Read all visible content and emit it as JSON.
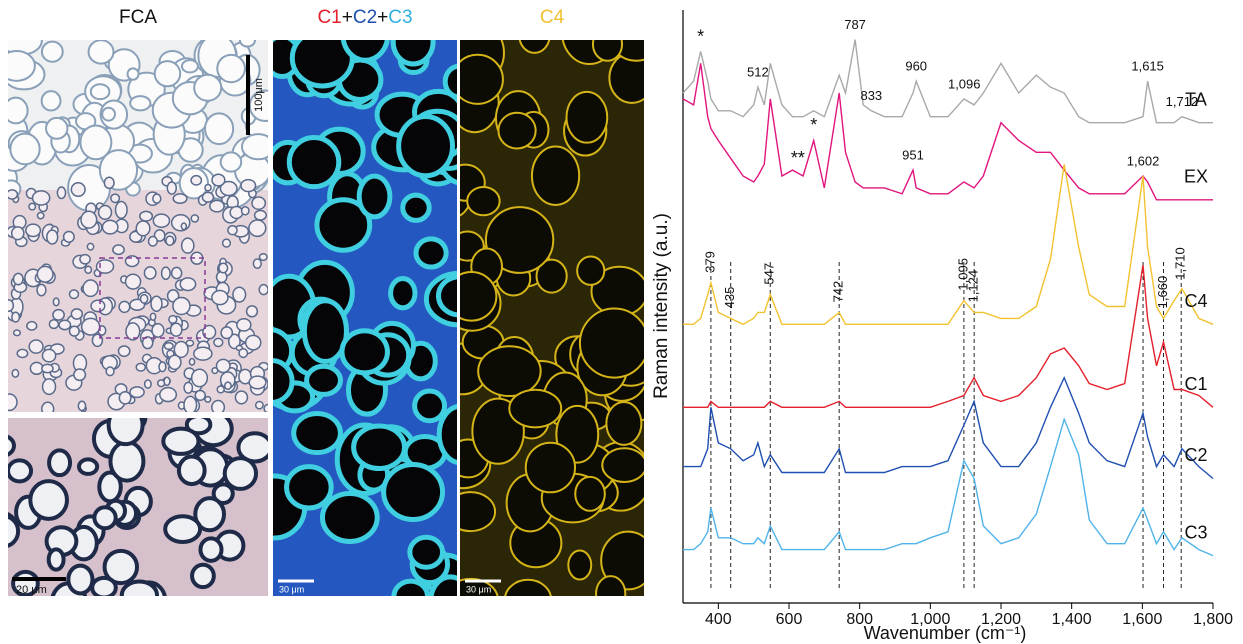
{
  "chart_data": {
    "type": "line",
    "xlabel": "Wavenumber (cm⁻¹)",
    "ylabel": "Raman intensity (a.u.)",
    "xlim": [
      300,
      1800
    ],
    "ylim": [
      0,
      100
    ],
    "xticks": [
      400,
      600,
      800,
      {
        "value": 1000,
        "label": "1,000"
      },
      {
        "value": 1200,
        "label": "1,200"
      },
      {
        "value": 1400,
        "label": "1,400"
      },
      {
        "value": 1600,
        "label": "1,600"
      },
      {
        "value": 1800,
        "label": "1,800"
      }
    ],
    "x": [
      300,
      330,
      350,
      370,
      379,
      400,
      435,
      470,
      500,
      512,
      530,
      547,
      580,
      610,
      640,
      670,
      700,
      742,
      760,
      787,
      810,
      833,
      870,
      920,
      951,
      960,
      1000,
      1050,
      1095,
      1124,
      1150,
      1200,
      1250,
      1300,
      1340,
      1379,
      1420,
      1450,
      1500,
      1550,
      1602,
      1615,
      1640,
      1660,
      1690,
      1712,
      1760,
      1800
    ],
    "reference_lines": [
      379,
      435,
      547,
      742,
      1095,
      1124,
      1602,
      1660,
      1710
    ],
    "series": [
      {
        "name": "TA",
        "color": "#a9a9a9",
        "values": [
          86,
          88,
          93,
          88,
          85,
          83,
          83,
          82,
          84,
          87,
          84,
          91,
          84,
          82,
          82,
          83,
          82,
          89,
          86,
          95,
          84,
          83,
          82,
          82,
          86,
          88,
          82,
          82,
          85,
          84,
          86,
          91,
          86,
          89,
          87,
          86,
          82,
          81,
          81,
          81,
          82,
          88,
          81,
          81,
          81,
          82,
          81,
          81
        ],
        "peak_labels": [
          {
            "x": 350,
            "label": "*"
          },
          {
            "x": 512,
            "label": "512"
          },
          {
            "x": 787,
            "label": "787"
          },
          {
            "x": 833,
            "label": "833"
          },
          {
            "x": 960,
            "label": "960"
          },
          {
            "x": 1096,
            "label": "1,096"
          },
          {
            "x": 1615,
            "label": "1,615"
          },
          {
            "x": 1712,
            "label": "1,712"
          }
        ]
      },
      {
        "name": "EX",
        "color": "#e0157d",
        "values": [
          85,
          84,
          91,
          82,
          80,
          78,
          75,
          72,
          71,
          72,
          74,
          85,
          72,
          73,
          72,
          78,
          70,
          86,
          76,
          71,
          70,
          70,
          70,
          69,
          73,
          70,
          69,
          69,
          71,
          70,
          72,
          81,
          78,
          76,
          76,
          73,
          70,
          69,
          69,
          69,
          72,
          71,
          68,
          68,
          68,
          68,
          68,
          68
        ],
        "peak_labels": [
          {
            "x": 625,
            "label": "**"
          },
          {
            "x": 670,
            "label": "*"
          },
          {
            "x": 951,
            "label": "951"
          },
          {
            "x": 1602,
            "label": "1,602"
          }
        ]
      },
      {
        "name": "C4",
        "color": "#f2c230",
        "values": [
          47,
          47,
          48,
          52,
          54,
          49,
          48,
          47,
          48,
          49,
          49,
          52,
          47,
          47,
          47,
          47,
          47,
          49,
          47,
          47,
          47,
          47,
          47,
          47,
          47,
          47,
          47,
          47,
          51,
          49,
          49,
          48,
          48,
          50,
          58,
          74,
          60,
          52,
          50,
          50,
          72,
          60,
          50,
          48,
          51,
          53,
          48,
          47
        ],
        "label_rotation": -90,
        "peak_labels": [
          {
            "x": 379,
            "label": "379"
          },
          {
            "x": 435,
            "label": "435"
          },
          {
            "x": 547,
            "label": "547"
          },
          {
            "x": 742,
            "label": "742"
          },
          {
            "x": 1095,
            "label": "1,095"
          },
          {
            "x": 1124,
            "label": "1,124"
          },
          {
            "x": 1660,
            "label": "1,660"
          },
          {
            "x": 1710,
            "label": "1,710"
          }
        ]
      },
      {
        "name": "C1",
        "color": "#e3202b",
        "values": [
          33,
          33,
          33,
          33,
          34,
          33,
          33,
          33,
          33,
          33,
          33,
          34,
          33,
          33,
          33,
          33,
          33,
          34,
          33,
          33,
          33,
          33,
          33,
          33,
          33,
          33,
          33,
          34,
          35,
          38,
          35,
          34,
          35,
          38,
          42,
          43,
          40,
          37,
          36,
          37,
          57,
          48,
          40,
          44,
          36,
          36,
          35,
          33
        ]
      },
      {
        "name": "C2",
        "color": "#1f4fb0",
        "values": [
          23,
          23,
          23,
          26,
          33,
          27,
          26,
          24,
          25,
          27,
          23,
          25,
          22,
          22,
          22,
          22,
          22,
          26,
          22,
          22,
          22,
          22,
          22,
          23,
          23,
          23,
          23,
          24,
          30,
          34,
          27,
          23,
          23,
          27,
          33,
          38,
          32,
          27,
          24,
          23,
          32,
          28,
          23,
          25,
          23,
          26,
          23,
          21
        ]
      },
      {
        "name": "C3",
        "color": "#4fb3ea",
        "values": [
          9,
          9,
          10,
          12,
          16,
          11,
          11,
          10,
          10,
          11,
          10,
          13,
          9,
          9,
          9,
          9,
          9,
          12,
          9,
          9,
          9,
          9,
          9,
          10,
          10,
          10,
          11,
          12,
          24,
          21,
          13,
          10,
          11,
          15,
          23,
          31,
          25,
          14,
          10,
          10,
          16,
          14,
          10,
          12,
          9,
          11,
          9,
          8
        ]
      }
    ]
  },
  "panels": {
    "fca": {
      "title": "FCA",
      "scale_bar_top": "100μm",
      "scale_bar_bottom": "20 μm"
    },
    "composite": {
      "title_parts": [
        {
          "text": "C1",
          "color": "#e3202b"
        },
        {
          "text": "+",
          "color": "#111111"
        },
        {
          "text": "C2",
          "color": "#1f4fb0"
        },
        {
          "text": "+",
          "color": "#111111"
        },
        {
          "text": "C3",
          "color": "#2fb0e0"
        }
      ],
      "scale_bar": "30 μm"
    },
    "c4": {
      "title": "C4",
      "color": "#f2c230",
      "scale_bar": "30 μm"
    }
  }
}
